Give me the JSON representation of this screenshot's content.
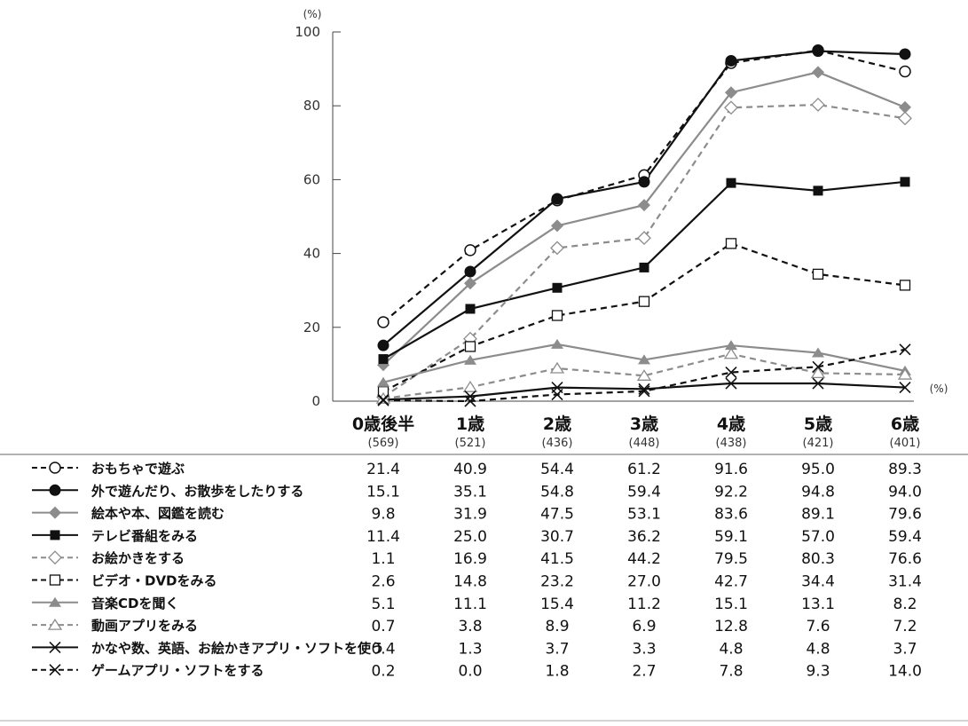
{
  "chart_data": {
    "type": "line",
    "y_unit": "(%)",
    "x_unit": "(%)",
    "ylim": [
      0,
      100
    ],
    "yticks": [
      0,
      20,
      40,
      60,
      80,
      100
    ],
    "grid": false,
    "categories": [
      "0歳後半",
      "1歳",
      "2歳",
      "3歳",
      "4歳",
      "5歳",
      "6歳"
    ],
    "sample_sizes": [
      "(569)",
      "(521)",
      "(436)",
      "(448)",
      "(438)",
      "(421)",
      "(401)"
    ],
    "series": [
      {
        "name": "おもちゃで遊ぶ",
        "values": [
          21.4,
          40.9,
          54.4,
          61.2,
          91.6,
          95.0,
          89.3
        ],
        "color": "#111111",
        "dash": true,
        "marker": "circle-open"
      },
      {
        "name": "外で遊んだり、お散歩をしたりする",
        "values": [
          15.1,
          35.1,
          54.8,
          59.4,
          92.2,
          94.8,
          94.0
        ],
        "color": "#111111",
        "dash": false,
        "marker": "circle-filled"
      },
      {
        "name": "絵本や本、図鑑を読む",
        "values": [
          9.8,
          31.9,
          47.5,
          53.1,
          83.6,
          89.1,
          79.6
        ],
        "color": "#8c8c8c",
        "dash": false,
        "marker": "diamond-filled"
      },
      {
        "name": "テレビ番組をみる",
        "values": [
          11.4,
          25.0,
          30.7,
          36.2,
          59.1,
          57.0,
          59.4
        ],
        "color": "#111111",
        "dash": false,
        "marker": "square-filled"
      },
      {
        "name": "お絵かきをする",
        "values": [
          1.1,
          16.9,
          41.5,
          44.2,
          79.5,
          80.3,
          76.6
        ],
        "color": "#8c8c8c",
        "dash": true,
        "marker": "diamond-open"
      },
      {
        "name": "ビデオ・DVDをみる",
        "values": [
          2.6,
          14.8,
          23.2,
          27.0,
          42.7,
          34.4,
          31.4
        ],
        "color": "#111111",
        "dash": true,
        "marker": "square-open"
      },
      {
        "name": "音楽CDを聞く",
        "values": [
          5.1,
          11.1,
          15.4,
          11.2,
          15.1,
          13.1,
          8.2
        ],
        "color": "#8c8c8c",
        "dash": false,
        "marker": "triangle-filled"
      },
      {
        "name": "動画アプリをみる",
        "values": [
          0.7,
          3.8,
          8.9,
          6.9,
          12.8,
          7.6,
          7.2
        ],
        "color": "#8c8c8c",
        "dash": true,
        "marker": "triangle-open"
      },
      {
        "name": "かなや数、英語、お絵かきアプリ・ソフトを使う",
        "values": [
          0.4,
          1.3,
          3.7,
          3.3,
          4.8,
          4.8,
          3.7
        ],
        "color": "#111111",
        "dash": false,
        "marker": "x"
      },
      {
        "name": "ゲームアプリ・ソフトをする",
        "values": [
          0.2,
          0.0,
          1.8,
          2.7,
          7.8,
          9.3,
          14.0
        ],
        "color": "#111111",
        "dash": true,
        "marker": "x"
      }
    ]
  }
}
